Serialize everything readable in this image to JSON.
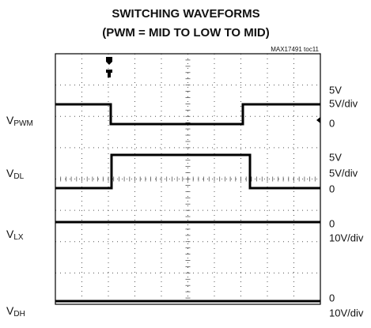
{
  "title": [
    "SWITCHING WAVEFORMS",
    "(PWM = MID TO LOW TO MID)"
  ],
  "figure_id": "MAX17491 toc11",
  "traces": [
    {
      "label": "V",
      "subscript": "PWM",
      "scale": [
        "5V",
        "5V/div",
        "0"
      ]
    },
    {
      "label": "V",
      "subscript": "DL",
      "scale": [
        "5V",
        "5V/div",
        "0"
      ]
    },
    {
      "label": "V",
      "subscript": "LX",
      "scale": [
        "0",
        "10V/div"
      ]
    },
    {
      "label": "V",
      "subscript": "DH",
      "scale": [
        "0",
        "10V/div"
      ]
    }
  ]
}
